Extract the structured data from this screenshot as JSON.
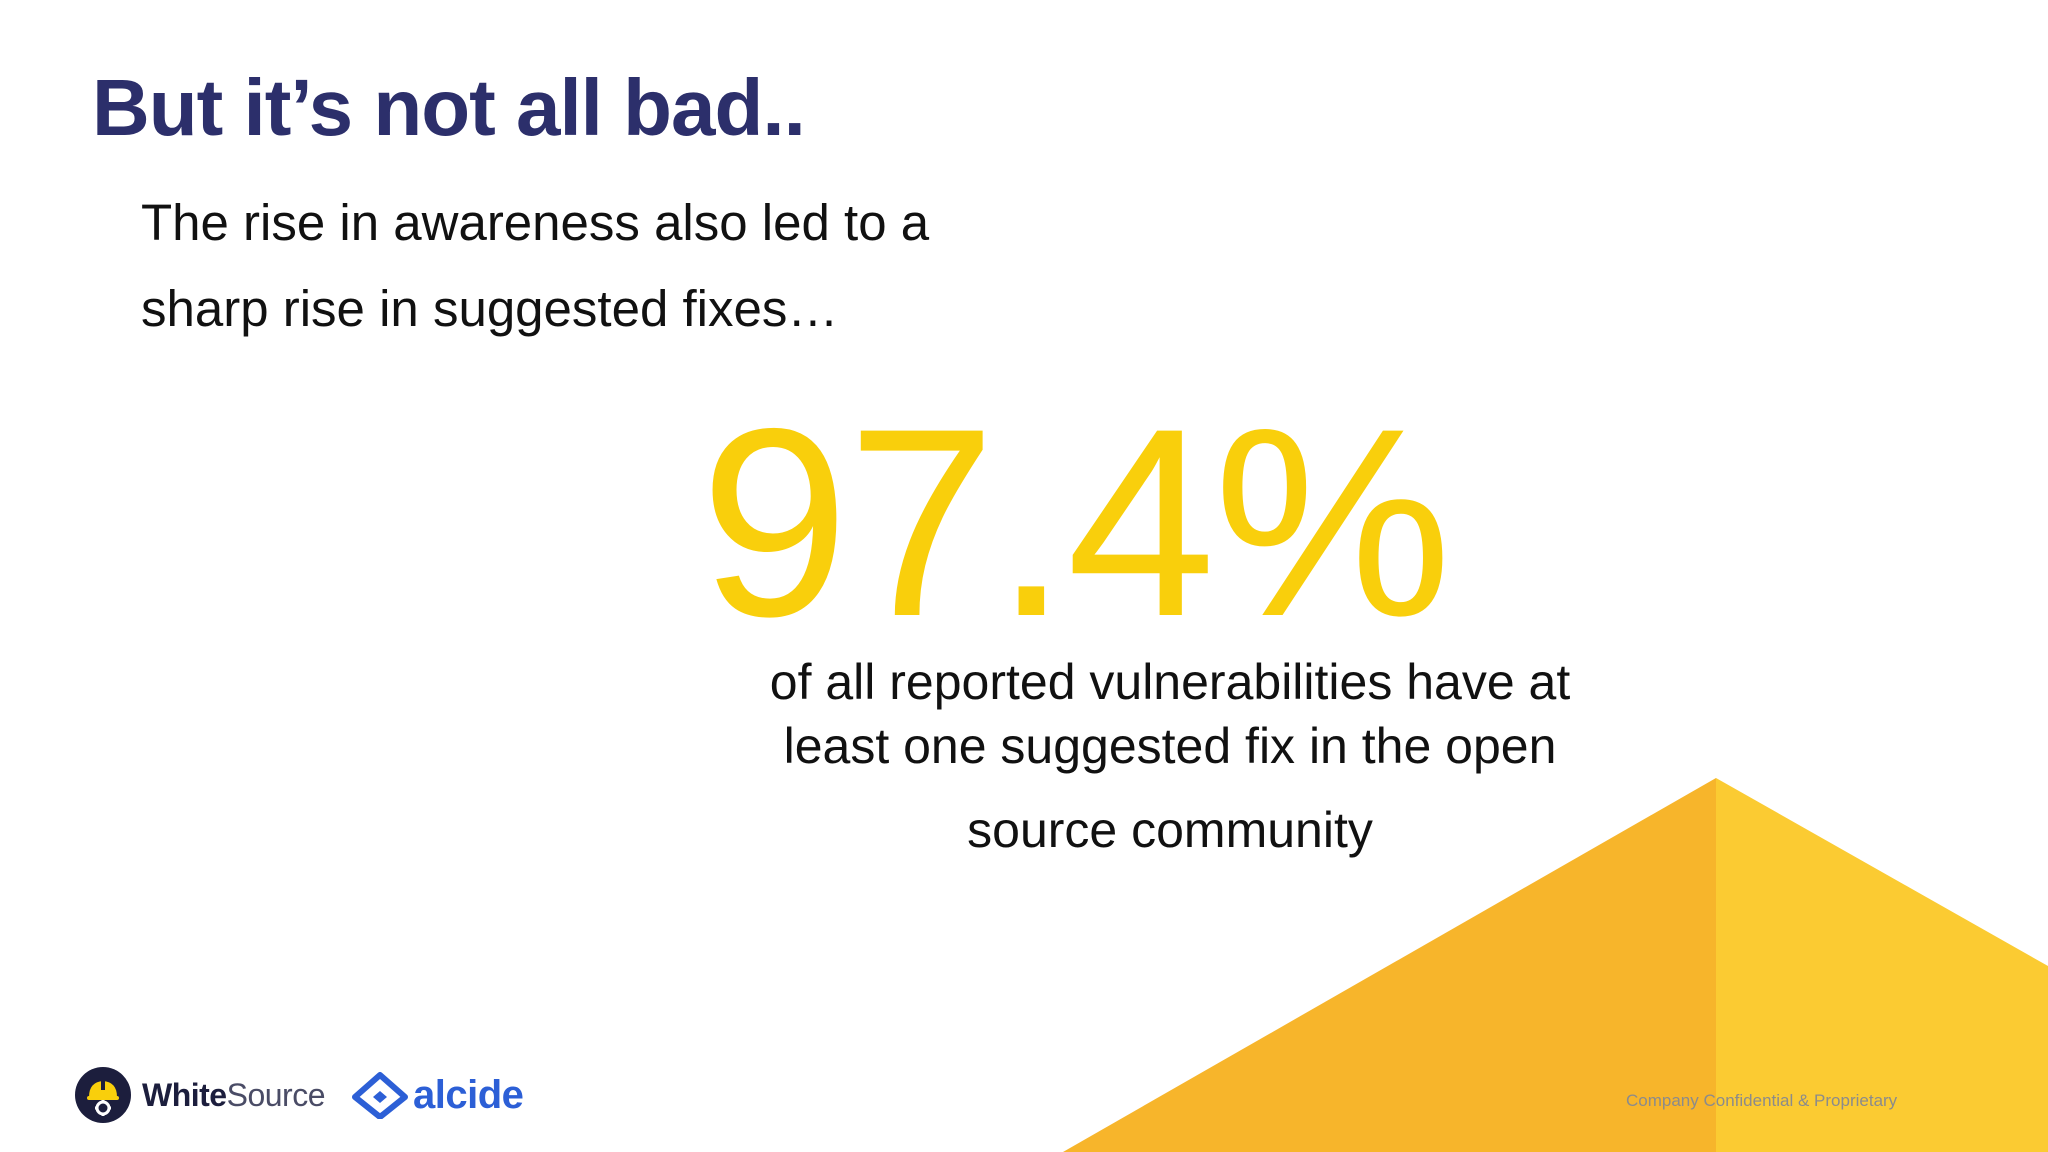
{
  "slide": {
    "title": "But it’s not all bad..",
    "subtitle_lines": [
      "The rise in awareness also led to a",
      "sharp rise in suggested fixes…"
    ],
    "stat": {
      "value": "97.4%",
      "description_lines": [
        "of all reported vulnerabilities have at",
        "least one suggested fix in the open",
        "source community"
      ]
    },
    "footer_note": "Company Confidential & Proprietary"
  },
  "logos": {
    "whitesource": {
      "text_bold": "White",
      "text_light": "Source",
      "icon": "whitesource-helmet-gear-icon"
    },
    "alcide": {
      "text": "alcide",
      "icon": "alcide-diamond-icon"
    }
  },
  "colors": {
    "title": "#2c2f6b",
    "stat": "#f9cf0c",
    "accent_orange": "#f7b52b",
    "accent_yellow": "#fbcb32",
    "alcide_blue": "#2c5fd6",
    "whitesource_navy": "#1c1e3d"
  }
}
